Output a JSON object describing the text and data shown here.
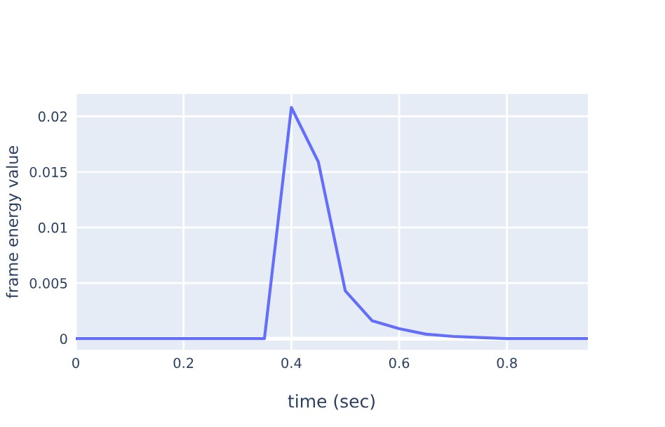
{
  "chart_data": {
    "type": "line",
    "xlabel": "time (sec)",
    "ylabel": "frame energy value",
    "x": [
      0,
      0.05,
      0.1,
      0.15,
      0.2,
      0.25,
      0.3,
      0.35,
      0.4,
      0.45,
      0.5,
      0.55,
      0.6,
      0.65,
      0.7,
      0.75,
      0.8,
      0.85,
      0.9,
      0.95
    ],
    "series": [
      {
        "color": "#636efa",
        "values": [
          0,
          0,
          0,
          0,
          0,
          0,
          0,
          0,
          0.0208,
          0.0159,
          0.0043,
          0.0016,
          0.0009,
          0.0004,
          0.0002,
          0.0001,
          0,
          0,
          0,
          0
        ]
      }
    ],
    "xlim": [
      0,
      0.95
    ],
    "ylim": [
      -0.001,
      0.022
    ],
    "xticks": [
      0,
      0.2,
      0.4,
      0.6,
      0.8
    ],
    "yticks": [
      0,
      0.005,
      0.01,
      0.015,
      0.02
    ],
    "grid": true,
    "marker": "none",
    "line_style": "solid"
  }
}
